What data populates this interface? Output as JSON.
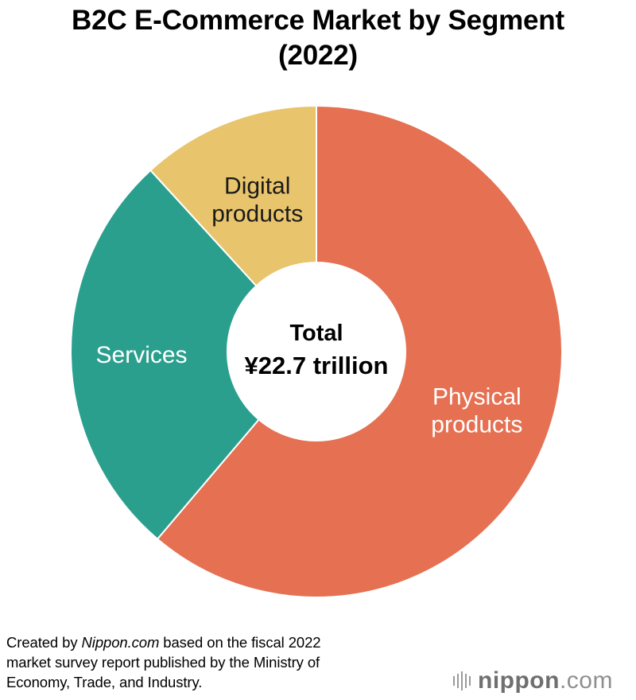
{
  "chart_data": {
    "type": "pie",
    "title_line1": "B2C E-Commerce Market by Segment",
    "title_line2": "(2022)",
    "donut": true,
    "center_label": {
      "line1": "Total",
      "line2": "¥22.7 trillion"
    },
    "categories": [
      "Physical products",
      "Services",
      "Digital products"
    ],
    "slices": [
      {
        "name": "Physical products",
        "label_lines": [
          "Physical",
          "products"
        ],
        "value": 61.2,
        "color": "#e57052",
        "label_color": "#ffffff"
      },
      {
        "name": "Services",
        "label_lines": [
          "Services"
        ],
        "value": 27.0,
        "color": "#2b9f8e",
        "label_color": "#ffffff"
      },
      {
        "name": "Digital products",
        "label_lines": [
          "Digital",
          "products"
        ],
        "value": 11.8,
        "color": "#e8c46c",
        "label_color": "#1a1a1a"
      }
    ],
    "legend": "none"
  },
  "footer": {
    "prefix": "Created by ",
    "source_italic": "Nippon.com",
    "rest_line1": " based on the fiscal 2022",
    "line2": "market survey report published by the Ministry of",
    "line3": "Economy, Trade, and Industry."
  },
  "logo": {
    "bold_part": "nippon",
    "light_part": ".com"
  }
}
